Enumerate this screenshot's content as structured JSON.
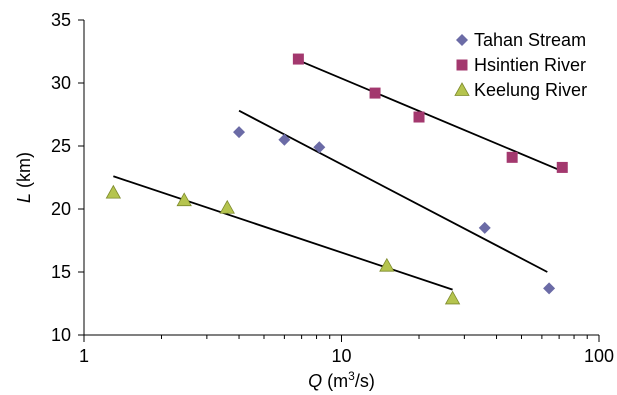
{
  "chart_data": {
    "type": "scatter",
    "xlabel": {
      "var": "Q",
      "unit_open": " (m",
      "unit_sup": "3",
      "unit_close": "/s)"
    },
    "ylabel": {
      "var": "L",
      "unit": " (km)"
    },
    "x_scale": "log",
    "xlim": [
      1,
      100
    ],
    "ylim": [
      10,
      35
    ],
    "x_ticks": [
      {
        "value": 1,
        "label": "1"
      },
      {
        "value": 10,
        "label": "10"
      },
      {
        "value": 100,
        "label": "100"
      }
    ],
    "y_ticks": [
      {
        "value": 10,
        "label": "10"
      },
      {
        "value": 15,
        "label": "15"
      },
      {
        "value": 20,
        "label": "20"
      },
      {
        "value": 25,
        "label": "25"
      },
      {
        "value": 30,
        "label": "30"
      },
      {
        "value": 35,
        "label": "35"
      }
    ],
    "grid": false,
    "legend_position": "top-right",
    "series": [
      {
        "name": "Tahan Stream",
        "marker": "diamond",
        "color": "#6b6ba6",
        "points": [
          {
            "x": 4.0,
            "y": 26.1
          },
          {
            "x": 6.0,
            "y": 25.5
          },
          {
            "x": 8.2,
            "y": 24.9
          },
          {
            "x": 36,
            "y": 18.5
          },
          {
            "x": 64,
            "y": 13.7
          }
        ],
        "fit": [
          {
            "x": 4.0,
            "y": 27.8
          },
          {
            "x": 63,
            "y": 15.0
          }
        ]
      },
      {
        "name": "Hsintien River",
        "marker": "square",
        "color": "#a3386e",
        "points": [
          {
            "x": 6.8,
            "y": 31.9
          },
          {
            "x": 13.5,
            "y": 29.2
          },
          {
            "x": 20,
            "y": 27.3
          },
          {
            "x": 46,
            "y": 24.1
          },
          {
            "x": 72,
            "y": 23.3
          }
        ],
        "fit": [
          {
            "x": 6.8,
            "y": 31.8
          },
          {
            "x": 72,
            "y": 23.0
          }
        ]
      },
      {
        "name": "Keelung River",
        "marker": "triangle",
        "color": "#b5c44e",
        "points": [
          {
            "x": 1.3,
            "y": 21.3
          },
          {
            "x": 2.45,
            "y": 20.7
          },
          {
            "x": 3.6,
            "y": 20.1
          },
          {
            "x": 15,
            "y": 15.5
          },
          {
            "x": 27,
            "y": 12.9
          }
        ],
        "fit": [
          {
            "x": 1.3,
            "y": 22.6
          },
          {
            "x": 27,
            "y": 13.6
          }
        ]
      }
    ]
  }
}
